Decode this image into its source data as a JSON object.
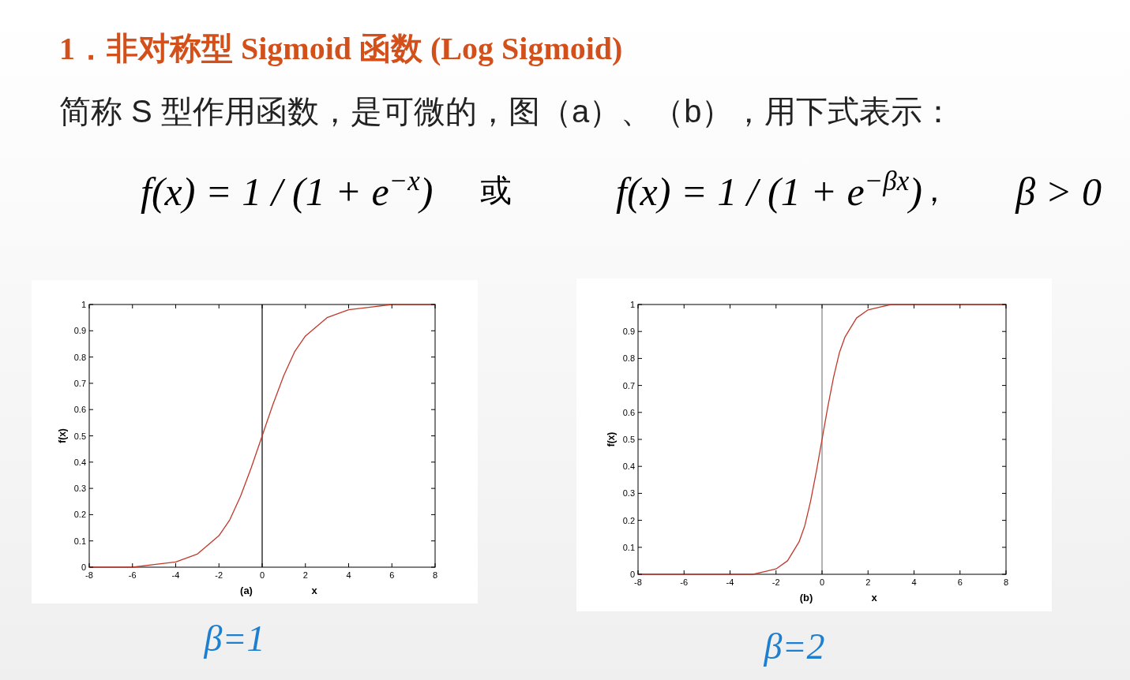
{
  "chart_data": [
    {
      "type": "line",
      "title": "1．非对称型 Sigmoid 函数 (Log Sigmoid)",
      "subtitle": "简称 S 型作用函数，是可微的，图（a）、（b），用下式表示：",
      "xlabel": "x",
      "ylabel": "f(x)",
      "annotations": [
        "f(x) = 1 / (1 + e$^{−x}$)",
        "或",
        "f(x) = 1 / (1 + e$^{−βx}$)",
        "，",
        "β > 0",
        "(a)",
        "β=1"
      ],
      "xlim": [
        -8,
        8
      ],
      "xticks": [
        -8,
        -6,
        -4,
        -2,
        0,
        2,
        4,
        6,
        8
      ],
      "ylim": [
        0,
        1
      ],
      "yticks": [
        0,
        0.1,
        0.2,
        0.3,
        0.4,
        0.5,
        0.6,
        0.7,
        0.8,
        0.9,
        1
      ],
      "grid": false,
      "ref_lines": [
        {
          "axis": "x",
          "value": 0,
          "color": "#000000"
        }
      ],
      "series": [
        {
          "color": "#c0392b",
          "x": [
            -8,
            -6,
            -5,
            -4,
            -3,
            -2,
            -1.5,
            -1,
            -0.5,
            0,
            0.5,
            1,
            1.5,
            2,
            3,
            4,
            5,
            6,
            8
          ],
          "values": [
            0.0,
            0.0,
            0.01,
            0.02,
            0.05,
            0.12,
            0.18,
            0.27,
            0.38,
            0.5,
            0.62,
            0.73,
            0.82,
            0.88,
            0.95,
            0.98,
            0.99,
            1.0,
            1.0
          ]
        }
      ]
    },
    {
      "type": "line",
      "xlabel": "x",
      "ylabel": "f(x)",
      "annotations": [
        "(b)",
        "β=2"
      ],
      "xlim": [
        -8,
        8
      ],
      "xticks": [
        -8,
        -6,
        -4,
        -2,
        0,
        2,
        4,
        6,
        8
      ],
      "ylim": [
        0,
        1
      ],
      "yticks": [
        0,
        0.1,
        0.2,
        0.3,
        0.4,
        0.5,
        0.6,
        0.7,
        0.8,
        0.9,
        1
      ],
      "grid": false,
      "ref_lines": [
        {
          "axis": "x",
          "value": 0,
          "color": "#808080"
        }
      ],
      "series": [
        {
          "color": "#c0392b",
          "x": [
            -8,
            -4,
            -3,
            -2.5,
            -2,
            -1.5,
            -1,
            -0.75,
            -0.5,
            -0.25,
            0,
            0.25,
            0.5,
            0.75,
            1,
            1.5,
            2,
            2.5,
            3,
            4,
            8
          ],
          "values": [
            0.0,
            0.0,
            0.0,
            0.01,
            0.02,
            0.05,
            0.12,
            0.18,
            0.27,
            0.38,
            0.5,
            0.62,
            0.73,
            0.82,
            0.88,
            0.95,
            0.98,
            0.99,
            1.0,
            1.0,
            1.0
          ]
        }
      ]
    }
  ]
}
